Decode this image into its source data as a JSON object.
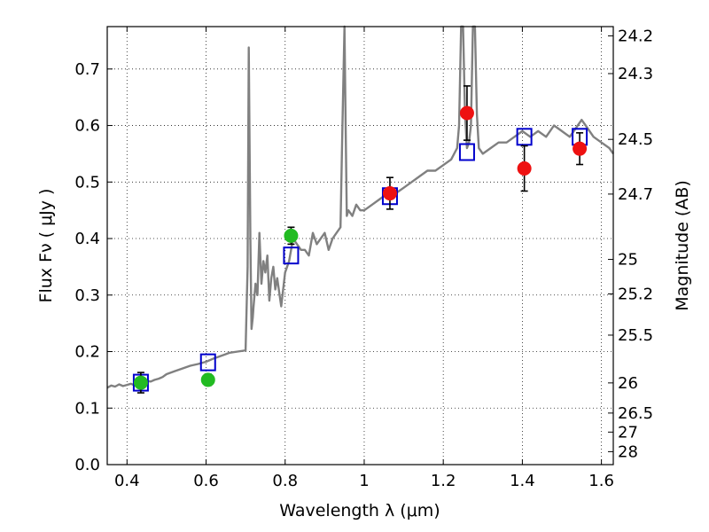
{
  "chart_data": {
    "type": "scatter",
    "xlabel": "Wavelength  λ (μm)",
    "ylabel": "Flux  Fν  ( μJy )",
    "y2label": "Magnitude (AB)",
    "xlim": [
      0.35,
      1.63
    ],
    "ylim": [
      0.0,
      0.775
    ],
    "grid": true,
    "x_ticks": [
      0.4,
      0.6,
      0.8,
      1.0,
      1.2,
      1.4,
      1.6
    ],
    "x_tick_labels": [
      "0.4",
      "0.6",
      "0.8",
      "1",
      "1.2",
      "1.4",
      "1.6"
    ],
    "y_ticks": [
      0.0,
      0.1,
      0.2,
      0.3,
      0.4,
      0.5,
      0.6,
      0.7
    ],
    "y_tick_labels": [
      "0.0",
      "0.1",
      "0.2",
      "0.3",
      "0.4",
      "0.5",
      "0.6",
      "0.7"
    ],
    "mag_ticks": [
      24.2,
      24.3,
      24.5,
      24.7,
      25,
      25.2,
      25.5,
      26,
      26.5,
      27,
      28
    ],
    "mag_tick_labels": [
      "24.2",
      "24.3",
      "24.5",
      "24.7",
      "25",
      "25.2",
      "25.5",
      "26",
      "26.5",
      "27",
      "28"
    ],
    "series": [
      {
        "kind": "line",
        "color": "#808080",
        "x": [
          0.35,
          0.36,
          0.37,
          0.38,
          0.39,
          0.4,
          0.41,
          0.42,
          0.43,
          0.44,
          0.45,
          0.46,
          0.47,
          0.48,
          0.49,
          0.5,
          0.52,
          0.54,
          0.56,
          0.58,
          0.6,
          0.62,
          0.64,
          0.66,
          0.68,
          0.7,
          0.705,
          0.708,
          0.712,
          0.715,
          0.718,
          0.72,
          0.725,
          0.73,
          0.735,
          0.74,
          0.745,
          0.75,
          0.755,
          0.76,
          0.765,
          0.77,
          0.775,
          0.78,
          0.79,
          0.8,
          0.81,
          0.82,
          0.83,
          0.84,
          0.85,
          0.86,
          0.87,
          0.88,
          0.89,
          0.9,
          0.91,
          0.92,
          0.93,
          0.94,
          0.945,
          0.95,
          0.953,
          0.956,
          0.96,
          0.97,
          0.98,
          0.99,
          1.0,
          1.02,
          1.04,
          1.06,
          1.08,
          1.1,
          1.12,
          1.14,
          1.16,
          1.18,
          1.2,
          1.22,
          1.235,
          1.24,
          1.245,
          1.25,
          1.255,
          1.26,
          1.265,
          1.27,
          1.275,
          1.28,
          1.285,
          1.29,
          1.3,
          1.32,
          1.34,
          1.36,
          1.38,
          1.4,
          1.42,
          1.44,
          1.46,
          1.48,
          1.5,
          1.52,
          1.54,
          1.55,
          1.56,
          1.58,
          1.6,
          1.62,
          1.63
        ],
        "y": [
          0.136,
          0.14,
          0.138,
          0.142,
          0.139,
          0.141,
          0.143,
          0.14,
          0.142,
          0.145,
          0.148,
          0.147,
          0.15,
          0.152,
          0.155,
          0.16,
          0.165,
          0.17,
          0.175,
          0.178,
          0.182,
          0.188,
          0.193,
          0.198,
          0.2,
          0.202,
          0.35,
          0.738,
          0.4,
          0.24,
          0.26,
          0.28,
          0.32,
          0.3,
          0.41,
          0.32,
          0.36,
          0.34,
          0.37,
          0.29,
          0.33,
          0.35,
          0.31,
          0.33,
          0.28,
          0.34,
          0.36,
          0.4,
          0.39,
          0.38,
          0.38,
          0.37,
          0.41,
          0.39,
          0.4,
          0.41,
          0.38,
          0.4,
          0.41,
          0.42,
          0.6,
          0.775,
          0.6,
          0.44,
          0.45,
          0.44,
          0.46,
          0.45,
          0.45,
          0.46,
          0.47,
          0.48,
          0.48,
          0.49,
          0.5,
          0.51,
          0.52,
          0.52,
          0.53,
          0.54,
          0.56,
          0.6,
          0.775,
          0.775,
          0.62,
          0.56,
          0.57,
          0.6,
          0.775,
          0.775,
          0.62,
          0.56,
          0.55,
          0.56,
          0.57,
          0.57,
          0.58,
          0.59,
          0.58,
          0.59,
          0.58,
          0.6,
          0.59,
          0.58,
          0.6,
          0.61,
          0.6,
          0.58,
          0.57,
          0.56,
          0.55
        ]
      },
      {
        "kind": "markers",
        "marker": "open-square",
        "color": "#0000cc",
        "x": [
          0.435,
          0.605,
          0.815,
          1.065,
          1.26,
          1.405,
          1.545
        ],
        "y": [
          0.145,
          0.181,
          0.37,
          0.475,
          0.553,
          0.58,
          0.58
        ]
      },
      {
        "kind": "markers",
        "marker": "filled-circle",
        "color": "#22bb22",
        "x": [
          0.435,
          0.605,
          0.815
        ],
        "y": [
          0.145,
          0.15,
          0.405
        ],
        "yerr": [
          0.018,
          0.01,
          0.015
        ]
      },
      {
        "kind": "markers",
        "marker": "filled-circle",
        "color": "#ee1111",
        "x": [
          1.065,
          1.26,
          1.405,
          1.545
        ],
        "y": [
          0.48,
          0.622,
          0.524,
          0.559
        ],
        "yerr": [
          0.028,
          0.048,
          0.04,
          0.028
        ]
      }
    ]
  }
}
